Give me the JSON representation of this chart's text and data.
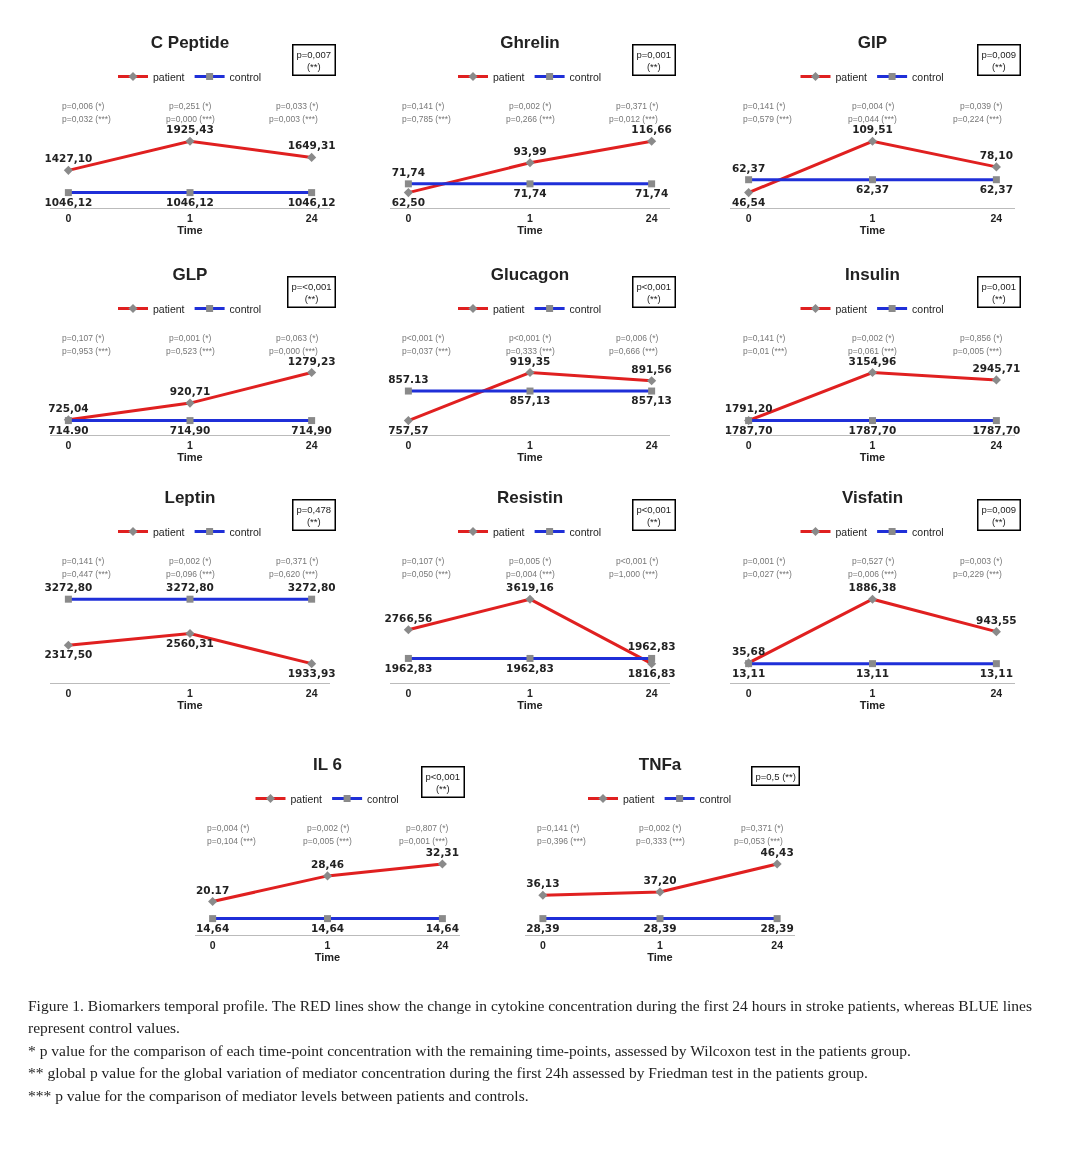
{
  "chart_data": [
    {
      "type": "line",
      "title": "C Peptide",
      "categories": [
        "0",
        "1",
        "24"
      ],
      "xlabel": "Time",
      "legend": "top",
      "tick_labels": "x",
      "marker": "diamond",
      "series": [
        {
          "name": "patient",
          "color": "#e02020",
          "values": [
            1427.1,
            1925.43,
            1649.31
          ],
          "value_labels": [
            "1427,10",
            "1925,43",
            "1649,31"
          ]
        },
        {
          "name": "control",
          "color": "#1f2fd8",
          "values": [
            1046.12,
            1046.12,
            1046.12
          ],
          "value_labels": [
            "1046,12",
            "1046,12",
            "1046,12"
          ],
          "marker": "square"
        }
      ],
      "annotations": [
        "p=0,007\n(**)",
        "p=0,006 (*)",
        "p=0,251 (*)",
        "p=0,033 (*)",
        "p=0,032 (***)",
        "p=0,000 (***)",
        "p=0,003 (***)"
      ]
    },
    {
      "type": "line",
      "title": "Ghrelin",
      "categories": [
        "0",
        "1",
        "24"
      ],
      "xlabel": "Time",
      "legend": "top",
      "tick_labels": "x",
      "marker": "diamond",
      "series": [
        {
          "name": "patient",
          "color": "#e02020",
          "values": [
            62.5,
            93.99,
            116.66
          ],
          "value_labels": [
            "62,50",
            "93,99",
            "116,66"
          ]
        },
        {
          "name": "control",
          "color": "#1f2fd8",
          "values": [
            71.74,
            71.74,
            71.74
          ],
          "value_labels": [
            "71,74",
            "71,74",
            "71,74"
          ],
          "marker": "square"
        }
      ],
      "annotations": [
        "p=0,001\n(**)",
        "p=0,141 (*)",
        "p=0,002 (*)",
        "p=0,371 (*)",
        "p=0,785 (***)",
        "p=0,266 (***)",
        "p=0,012 (***)"
      ]
    },
    {
      "type": "line",
      "title": "GIP",
      "categories": [
        "0",
        "1",
        "24"
      ],
      "xlabel": "Time",
      "legend": "top",
      "tick_labels": "x",
      "marker": "diamond",
      "series": [
        {
          "name": "patient",
          "color": "#e02020",
          "values": [
            46.54,
            109.51,
            78.1
          ],
          "value_labels": [
            "46,54",
            "109,51",
            "78,10"
          ]
        },
        {
          "name": "control",
          "color": "#1f2fd8",
          "values": [
            62.37,
            62.37,
            62.37
          ],
          "value_labels": [
            "62,37",
            "62,37",
            "62,37"
          ],
          "marker": "square"
        }
      ],
      "annotations": [
        "p=0,009\n(**)",
        "p=0,141 (*)",
        "p=0,004 (*)",
        "p=0,039 (*)",
        "p=0,579 (***)",
        "p=0,044 (***)",
        "p=0,224 (***)"
      ]
    },
    {
      "type": "line",
      "title": "GLP",
      "categories": [
        "0",
        "1",
        "24"
      ],
      "xlabel": "Time",
      "legend": "top",
      "tick_labels": "x",
      "marker": "diamond",
      "series": [
        {
          "name": "patient",
          "color": "#e02020",
          "values": [
            725.04,
            920.71,
            1279.23
          ],
          "value_labels": [
            "725,04",
            "920,71",
            "1279,23"
          ]
        },
        {
          "name": "control",
          "color": "#1f2fd8",
          "values": [
            714.9,
            714.9,
            714.9
          ],
          "value_labels": [
            "714.90",
            "714,90",
            "714,90"
          ],
          "marker": "square"
        }
      ],
      "annotations": [
        "p=<0,001\n(**)",
        "p=0,107 (*)",
        "p=0,001 (*)",
        "p=0,063 (*)",
        "p=0,953 (***)",
        "p=0,523 (***)",
        "p=0,000 (***)"
      ]
    },
    {
      "type": "line",
      "title": "Glucagon",
      "categories": [
        "0",
        "1",
        "24"
      ],
      "xlabel": "Time",
      "legend": "top",
      "tick_labels": "x",
      "marker": "diamond",
      "series": [
        {
          "name": "patient",
          "color": "#e02020",
          "values": [
            757.57,
            919.35,
            891.56
          ],
          "value_labels": [
            "757,57",
            "919,35",
            "891,56"
          ]
        },
        {
          "name": "control",
          "color": "#1f2fd8",
          "values": [
            857.13,
            857.13,
            857.13
          ],
          "value_labels": [
            "857.13",
            "857,13",
            "857,13"
          ],
          "marker": "square"
        }
      ],
      "annotations": [
        "p<0,001\n(**)",
        "p<0,001 (*)",
        "p<0,001 (*)",
        "p=0,006 (*)",
        "p=0,037 (***)",
        "p=0,333 (***)",
        "p=0,666 (***)"
      ]
    },
    {
      "type": "line",
      "title": "Insulin",
      "categories": [
        "0",
        "1",
        "24"
      ],
      "xlabel": "Time",
      "legend": "top",
      "tick_labels": "x",
      "marker": "diamond",
      "series": [
        {
          "name": "patient",
          "color": "#e02020",
          "values": [
            1791.2,
            3154.96,
            2945.71
          ],
          "value_labels": [
            "1791,20",
            "3154,96",
            "2945,71"
          ]
        },
        {
          "name": "control",
          "color": "#1f2fd8",
          "values": [
            1787.7,
            1787.7,
            1787.7
          ],
          "value_labels": [
            "1787,70",
            "1787,70",
            "1787,70"
          ],
          "marker": "square"
        }
      ],
      "annotations": [
        "p=0,001\n(**)",
        "p=0,141 (*)",
        "p=0,002 (*)",
        "p=0,856 (*)",
        "p=0,01 (***)",
        "p=0,061 (***)",
        "p=0,005 (***)"
      ]
    },
    {
      "type": "line",
      "title": "Leptin",
      "categories": [
        "0",
        "1",
        "24"
      ],
      "xlabel": "Time",
      "legend": "top",
      "tick_labels": "x",
      "marker": "diamond",
      "series": [
        {
          "name": "patient",
          "color": "#e02020",
          "values": [
            2317.5,
            2560.31,
            1933.93
          ],
          "value_labels": [
            "2317,50",
            "2560,31",
            "1933,93"
          ]
        },
        {
          "name": "control",
          "color": "#1f2fd8",
          "values": [
            3272.8,
            3272.8,
            3272.8
          ],
          "value_labels": [
            "3272,80",
            "3272,80",
            "3272,80"
          ],
          "marker": "square"
        }
      ],
      "annotations": [
        "p=0,478\n(**)",
        "p=0,141 (*)",
        "p=0,002 (*)",
        "p=0,371 (*)",
        "p=0,447 (***)",
        "p=0,096 (***)",
        "p=0,620 (***)"
      ]
    },
    {
      "type": "line",
      "title": "Resistin",
      "categories": [
        "0",
        "1",
        "24"
      ],
      "xlabel": "Time",
      "legend": "top",
      "tick_labels": "x",
      "marker": "diamond",
      "series": [
        {
          "name": "patient",
          "color": "#e02020",
          "values": [
            2766.56,
            3619.16,
            1816.83
          ],
          "value_labels": [
            "2766,56",
            "3619,16",
            "1816,83"
          ]
        },
        {
          "name": "control",
          "color": "#1f2fd8",
          "values": [
            1962.83,
            1962.83,
            1962.83
          ],
          "value_labels": [
            "1962,83",
            "1962,83",
            "1962,83"
          ],
          "marker": "square"
        }
      ],
      "annotations": [
        "p<0,001\n(**)",
        "p=0,107 (*)",
        "p=0,005 (*)",
        "p<0,001 (*)",
        "p=0,050 (***)",
        "p=0,004 (***)",
        "p=1,000 (***)"
      ]
    },
    {
      "type": "line",
      "title": "Visfatin",
      "categories": [
        "0",
        "1",
        "24"
      ],
      "xlabel": "Time",
      "legend": "top",
      "tick_labels": "x",
      "marker": "diamond",
      "series": [
        {
          "name": "patient",
          "color": "#e02020",
          "values": [
            35.68,
            1886.38,
            943.55
          ],
          "value_labels": [
            "35,68",
            "1886,38",
            "943,55"
          ]
        },
        {
          "name": "control",
          "color": "#1f2fd8",
          "values": [
            13.11,
            13.11,
            13.11
          ],
          "value_labels": [
            "13,11",
            "13,11",
            "13,11"
          ],
          "marker": "square"
        }
      ],
      "annotations": [
        "p=0,009\n(**)",
        "p=0,001 (*)",
        "p=0,527 (*)",
        "p=0,003 (*)",
        "p=0,027 (***)",
        "p=0,006 (***)",
        "p=0,229 (***)"
      ]
    },
    {
      "type": "line",
      "title": "IL 6",
      "categories": [
        "0",
        "1",
        "24"
      ],
      "xlabel": "Time",
      "legend": "top",
      "tick_labels": "x",
      "marker": "diamond",
      "series": [
        {
          "name": "patient",
          "color": "#e02020",
          "values": [
            20.17,
            28.46,
            32.31
          ],
          "value_labels": [
            "20.17",
            "28,46",
            "32,31"
          ]
        },
        {
          "name": "control",
          "color": "#1f2fd8",
          "values": [
            14.64,
            14.64,
            14.64
          ],
          "value_labels": [
            "14,64",
            "14,64",
            "14,64"
          ],
          "marker": "square"
        }
      ],
      "annotations": [
        "p<0,001\n(**)",
        "p=0,004 (*)",
        "p=0,002 (*)",
        "p=0,807 (*)",
        "p=0,104 (***)",
        "p=0,005 (***)",
        "p=0,001 (***)"
      ]
    },
    {
      "type": "line",
      "title": "TNFa",
      "categories": [
        "0",
        "1",
        "24"
      ],
      "xlabel": "Time",
      "legend": "top",
      "tick_labels": "x",
      "marker": "diamond",
      "series": [
        {
          "name": "patient",
          "color": "#e02020",
          "values": [
            36.13,
            37.2,
            46.43
          ],
          "value_labels": [
            "36,13",
            "37,20",
            "46,43"
          ]
        },
        {
          "name": "control",
          "color": "#1f2fd8",
          "values": [
            28.39,
            28.39,
            28.39
          ],
          "value_labels": [
            "28,39",
            "28,39",
            "28,39"
          ],
          "marker": "square"
        }
      ],
      "annotations": [
        "p=0,5 (**)",
        "p=0,141 (*)",
        "p=0,002 (*)",
        "p=0,371 (*)",
        "p=0,396 (***)",
        "p=0,333 (***)",
        "p=0,053 (***)"
      ]
    },
    {
      "type": "other",
      "annotations": [
        "Figure 1. Biomarkers temporal profile. The RED lines show the change in cytokine concentration during the first 24 hours in stroke patients, whereas BLUE lines represent control values.",
        "* p value for the comparison of each time-point concentration with the remaining time-points, assessed by Wilcoxon test in the patients group.",
        "** global p value for the global variation of mediator concentration during the first 24h assessed by Friedman test in the patients group.",
        "*** p value for the comparison of mediator levels between patients and controls."
      ]
    }
  ]
}
